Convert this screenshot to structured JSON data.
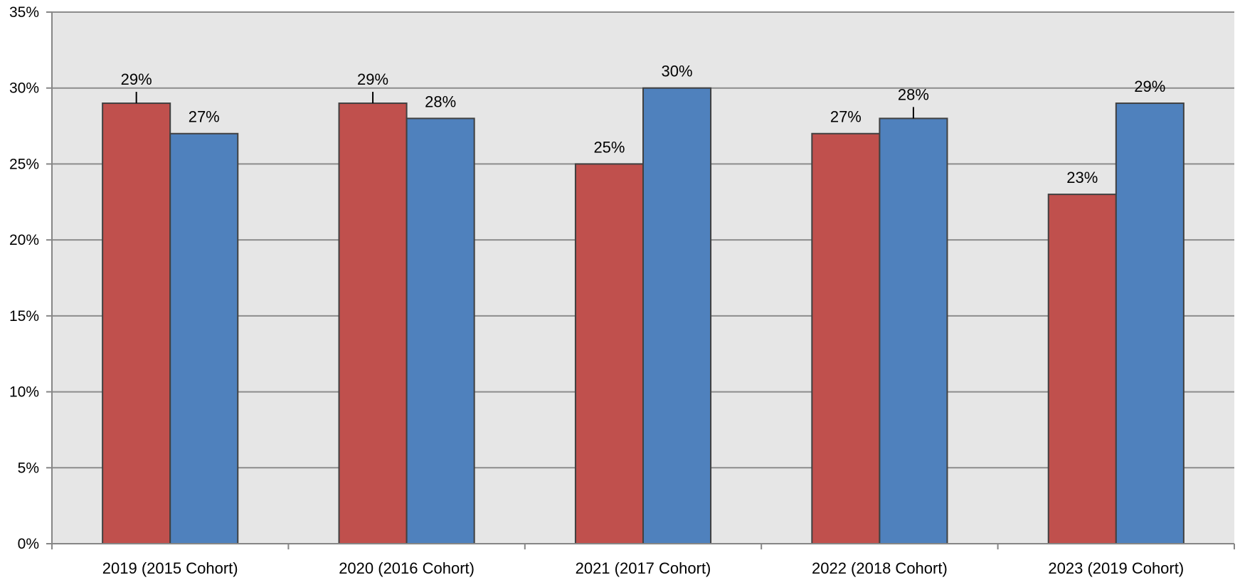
{
  "chart_data": {
    "type": "bar",
    "title": "",
    "xlabel": "",
    "ylabel": "",
    "categories": [
      "2019 (2015 Cohort)",
      "2020 (2016 Cohort)",
      "2021 (2017 Cohort)",
      "2022 (2018 Cohort)",
      "2023 (2019 Cohort)"
    ],
    "series": [
      {
        "values": [
          29,
          29,
          25,
          27,
          23
        ],
        "color": "#C0504D"
      },
      {
        "values": [
          27,
          28,
          30,
          28,
          29
        ],
        "color": "#4F81BD"
      }
    ],
    "data_labels": [
      [
        "29%",
        "29%",
        "25%",
        "27%",
        "23%"
      ],
      [
        "27%",
        "28%",
        "30%",
        "28%",
        "29%"
      ]
    ],
    "ylim": [
      0,
      35
    ],
    "yticks": [
      0,
      5,
      10,
      15,
      20,
      25,
      30,
      35
    ],
    "ytick_labels": [
      "0%",
      "5%",
      "10%",
      "15%",
      "20%",
      "25%",
      "30%",
      "35%"
    ],
    "grid": true,
    "legend": "none",
    "plot_background": "#E6E6E6",
    "gridline_color": "#8C8C8C",
    "bar_border_color": "#404040"
  }
}
